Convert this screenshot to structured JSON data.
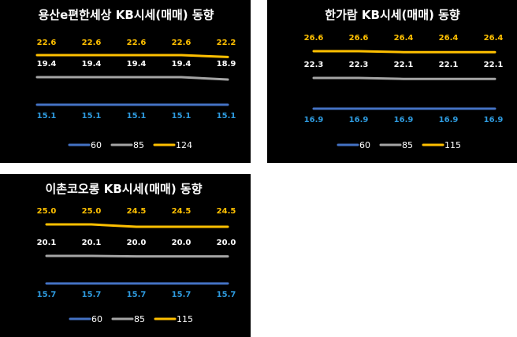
{
  "colors": {
    "s60": "#4472C4",
    "s85": "#A5A5A5",
    "sLarge": "#FFC000",
    "label60": "#2E9BDF",
    "labelMid": "#FFFFFF",
    "labelTop": "#FFC000"
  },
  "chart_data": [
    {
      "type": "line",
      "title": "용산e편한세상 KB시세(매매) 동향",
      "categories": [
        "",
        "",
        "",
        "",
        ""
      ],
      "series": [
        {
          "name": "60",
          "values": [
            15.1,
            15.1,
            15.1,
            15.1,
            15.1
          ],
          "labels": [
            "15.1",
            "15.1",
            "15.1",
            "15.1",
            "15.1"
          ]
        },
        {
          "name": "85",
          "values": [
            19.4,
            19.4,
            19.4,
            19.4,
            18.9
          ],
          "labels": [
            "19.4",
            "19.4",
            "19.4",
            "19.4",
            "18.9"
          ]
        },
        {
          "name": "124",
          "values": [
            22.6,
            22.6,
            22.6,
            22.6,
            22.2
          ],
          "labels": [
            "22.6",
            "22.6",
            "22.6",
            "22.6",
            "22.2"
          ]
        }
      ],
      "legend_position": "bottom"
    },
    {
      "type": "line",
      "title": "한가람 KB시세(매매) 동향",
      "categories": [
        "",
        "",
        "",
        "",
        ""
      ],
      "series": [
        {
          "name": "60",
          "values": [
            16.9,
            16.9,
            16.9,
            16.9,
            16.9
          ],
          "labels": [
            "16.9",
            "16.9",
            "16.9",
            "16.9",
            "16.9"
          ]
        },
        {
          "name": "85",
          "values": [
            22.3,
            22.3,
            22.1,
            22.1,
            22.1
          ],
          "labels": [
            "22.3",
            "22.3",
            "22.1",
            "22.1",
            "22.1"
          ]
        },
        {
          "name": "115",
          "values": [
            26.6,
            26.6,
            26.4,
            26.4,
            26.4
          ],
          "labels": [
            "26.6",
            "26.6",
            "26.4",
            "26.4",
            "26.4"
          ]
        }
      ],
      "legend_position": "bottom"
    },
    {
      "type": "line",
      "title": "이촌코오롱 KB시세(매매) 동향",
      "categories": [
        "",
        "",
        "",
        "",
        ""
      ],
      "series": [
        {
          "name": "60",
          "values": [
            15.7,
            15.7,
            15.7,
            15.7,
            15.7
          ],
          "labels": [
            "15.7",
            "15.7",
            "15.7",
            "15.7",
            "15.7"
          ]
        },
        {
          "name": "85",
          "values": [
            20.1,
            20.1,
            20.0,
            20.0,
            20.0
          ],
          "labels": [
            "20.1",
            "20.1",
            "20.0",
            "20.0",
            "20.0"
          ]
        },
        {
          "name": "115",
          "values": [
            25.0,
            25.0,
            24.5,
            24.5,
            24.5
          ],
          "labels": [
            "25.0",
            "25.0",
            "24.5",
            "24.5",
            "24.5"
          ]
        }
      ],
      "legend_position": "bottom"
    }
  ]
}
